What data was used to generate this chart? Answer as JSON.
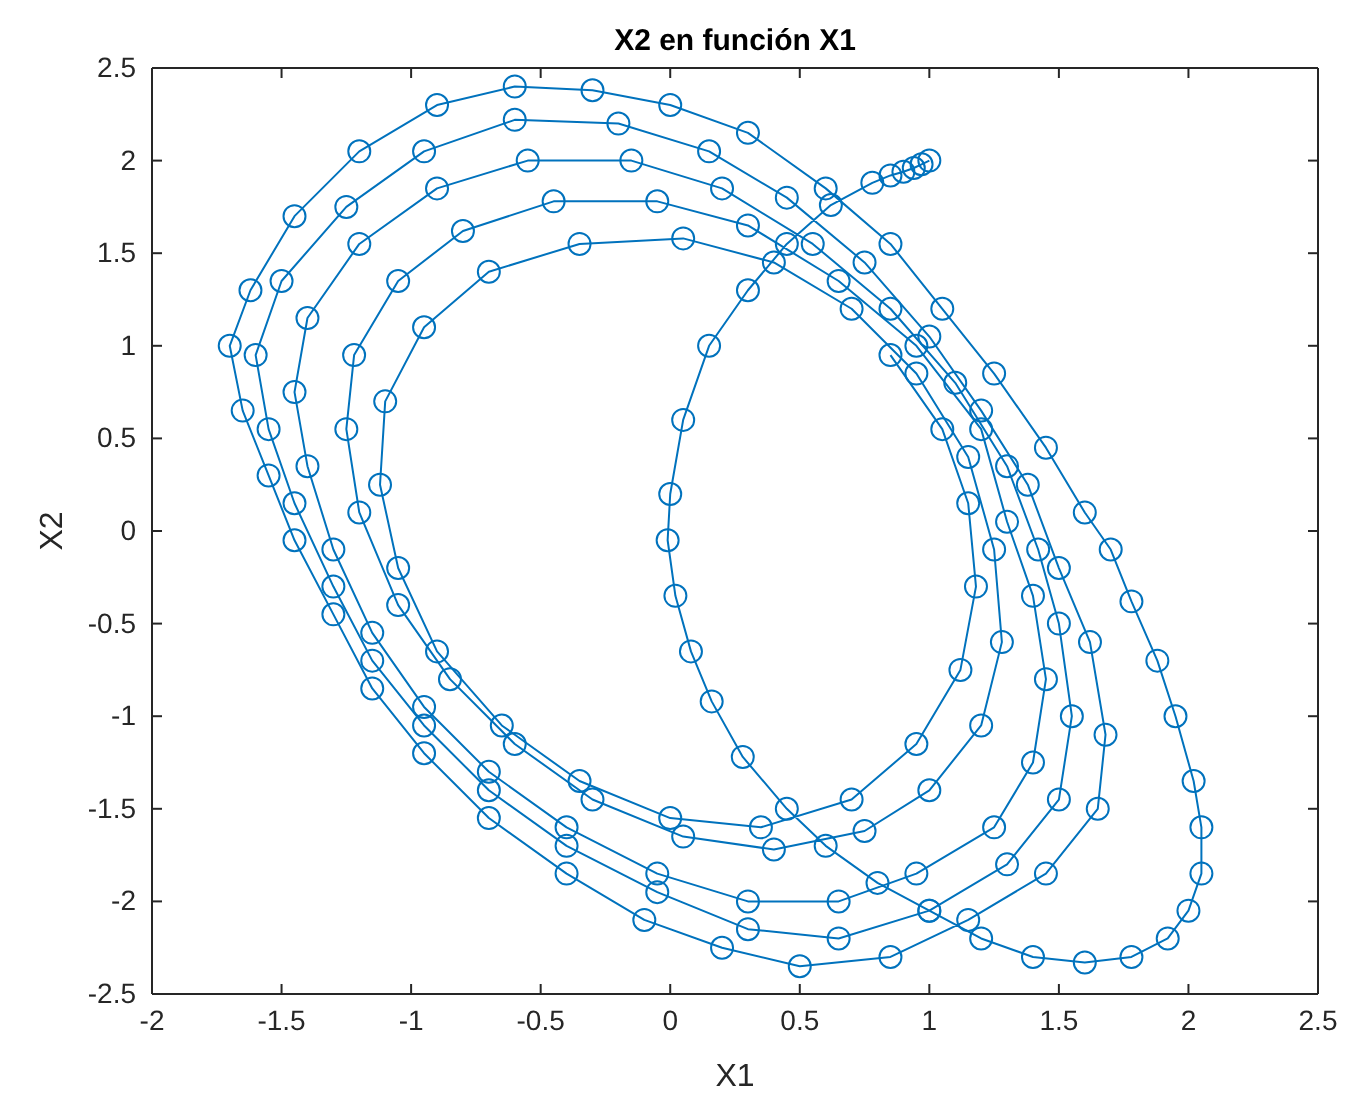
{
  "chart_data": {
    "type": "line",
    "title": "X2 en función X1",
    "xlabel": "X1",
    "ylabel": "X2",
    "marker": "circle",
    "xlim": [
      -2,
      2.5
    ],
    "xticks": [
      -2,
      -1.5,
      -1,
      -0.5,
      0,
      0.5,
      1,
      1.5,
      2,
      2.5
    ],
    "ylim": [
      -2.5,
      2.5
    ],
    "yticks": [
      -2.5,
      -2,
      -1.5,
      -1,
      -0.5,
      0,
      0.5,
      1,
      1.5,
      2,
      2.5
    ],
    "series": [
      {
        "color": "#0072bd",
        "x": [
          1.0,
          0.97,
          0.94,
          0.9,
          0.85,
          0.78,
          0.62,
          0.45,
          0.3,
          0.15,
          0.05,
          0,
          -0.01,
          0.02,
          0.08,
          0.16,
          0.28,
          0.45,
          0.6,
          0.8,
          1.0,
          1.2,
          1.4,
          1.6,
          1.78,
          1.92,
          2.0,
          2.05,
          2.05,
          2.02,
          1.95,
          1.88,
          1.78,
          1.7,
          1.6,
          1.45,
          1.25,
          1.05,
          0.85,
          0.6,
          0.3,
          0,
          -0.3,
          -0.6,
          -0.9,
          -1.2,
          -1.45,
          -1.62,
          -1.7,
          -1.65,
          -1.55,
          -1.45,
          -1.3,
          -1.15,
          -0.95,
          -0.7,
          -0.4,
          -0.1,
          0.2,
          0.5,
          0.85,
          1.15,
          1.45,
          1.65,
          1.68,
          1.62,
          1.5,
          1.38,
          1.2,
          1.0,
          0.75,
          0.45,
          0.15,
          -0.2,
          -0.6,
          -0.95,
          -1.25,
          -1.5,
          -1.6,
          -1.55,
          -1.45,
          -1.3,
          -1.15,
          -0.95,
          -0.7,
          -0.4,
          -0.05,
          0.3,
          0.65,
          1.0,
          1.3,
          1.5,
          1.55,
          1.5,
          1.42,
          1.3,
          1.1,
          0.85,
          0.55,
          0.2,
          -0.15,
          -0.55,
          -0.9,
          -1.2,
          -1.4,
          -1.45,
          -1.4,
          -1.3,
          -1.15,
          -0.95,
          -0.7,
          -0.4,
          -0.05,
          0.3,
          0.65,
          0.95,
          1.25,
          1.4,
          1.45,
          1.4,
          1.3,
          1.2,
          0.95,
          0.65,
          0.3,
          -0.05,
          -0.45,
          -0.8,
          -1.05,
          -1.22,
          -1.25,
          -1.2,
          -1.05,
          -0.85,
          -0.6,
          -0.3,
          0.05,
          0.4,
          0.75,
          1.0,
          1.2,
          1.28,
          1.25,
          1.15,
          0.95,
          0.7,
          0.4,
          0.05,
          -0.35,
          -0.7,
          -0.95,
          -1.1,
          -1.12,
          -1.05,
          -0.9,
          -0.65,
          -0.35,
          0,
          0.35,
          0.7,
          0.95,
          1.12,
          1.18,
          1.15,
          1.05,
          0.85
        ],
        "values": [
          2.0,
          1.98,
          1.96,
          1.94,
          1.92,
          1.88,
          1.76,
          1.55,
          1.3,
          1.0,
          0.6,
          0.2,
          -0.05,
          -0.35,
          -0.65,
          -0.92,
          -1.22,
          -1.5,
          -1.7,
          -1.9,
          -2.05,
          -2.2,
          -2.3,
          -2.33,
          -2.3,
          -2.2,
          -2.05,
          -1.85,
          -1.6,
          -1.35,
          -1.0,
          -0.7,
          -0.38,
          -0.1,
          0.1,
          0.45,
          0.85,
          1.2,
          1.55,
          1.85,
          2.15,
          2.3,
          2.38,
          2.4,
          2.3,
          2.05,
          1.7,
          1.3,
          1.0,
          0.65,
          0.3,
          -0.05,
          -0.45,
          -0.85,
          -1.2,
          -1.55,
          -1.85,
          -2.1,
          -2.25,
          -2.35,
          -2.3,
          -2.1,
          -1.85,
          -1.5,
          -1.1,
          -0.6,
          -0.2,
          0.25,
          0.65,
          1.05,
          1.45,
          1.8,
          2.05,
          2.2,
          2.22,
          2.05,
          1.75,
          1.35,
          0.95,
          0.55,
          0.15,
          -0.3,
          -0.7,
          -1.05,
          -1.4,
          -1.7,
          -1.95,
          -2.15,
          -2.2,
          -2.05,
          -1.8,
          -1.45,
          -1.0,
          -0.5,
          -0.1,
          0.35,
          0.8,
          1.2,
          1.55,
          1.85,
          2.0,
          2.0,
          1.85,
          1.55,
          1.15,
          0.75,
          0.35,
          -0.1,
          -0.55,
          -0.95,
          -1.3,
          -1.6,
          -1.85,
          -2.0,
          -2.0,
          -1.85,
          -1.6,
          -1.25,
          -0.8,
          -0.35,
          0.05,
          0.55,
          1.0,
          1.35,
          1.65,
          1.78,
          1.78,
          1.62,
          1.35,
          0.95,
          0.55,
          0.1,
          -0.4,
          -0.8,
          -1.15,
          -1.45,
          -1.65,
          -1.72,
          -1.62,
          -1.4,
          -1.05,
          -0.6,
          -0.1,
          0.4,
          0.85,
          1.2,
          1.45,
          1.58,
          1.55,
          1.4,
          1.1,
          0.7,
          0.25,
          -0.2,
          -0.65,
          -1.05,
          -1.35,
          -1.55,
          -1.6,
          -1.45,
          -1.15,
          -0.75,
          -0.3,
          0.15,
          0.55,
          0.95
        ]
      }
    ]
  }
}
